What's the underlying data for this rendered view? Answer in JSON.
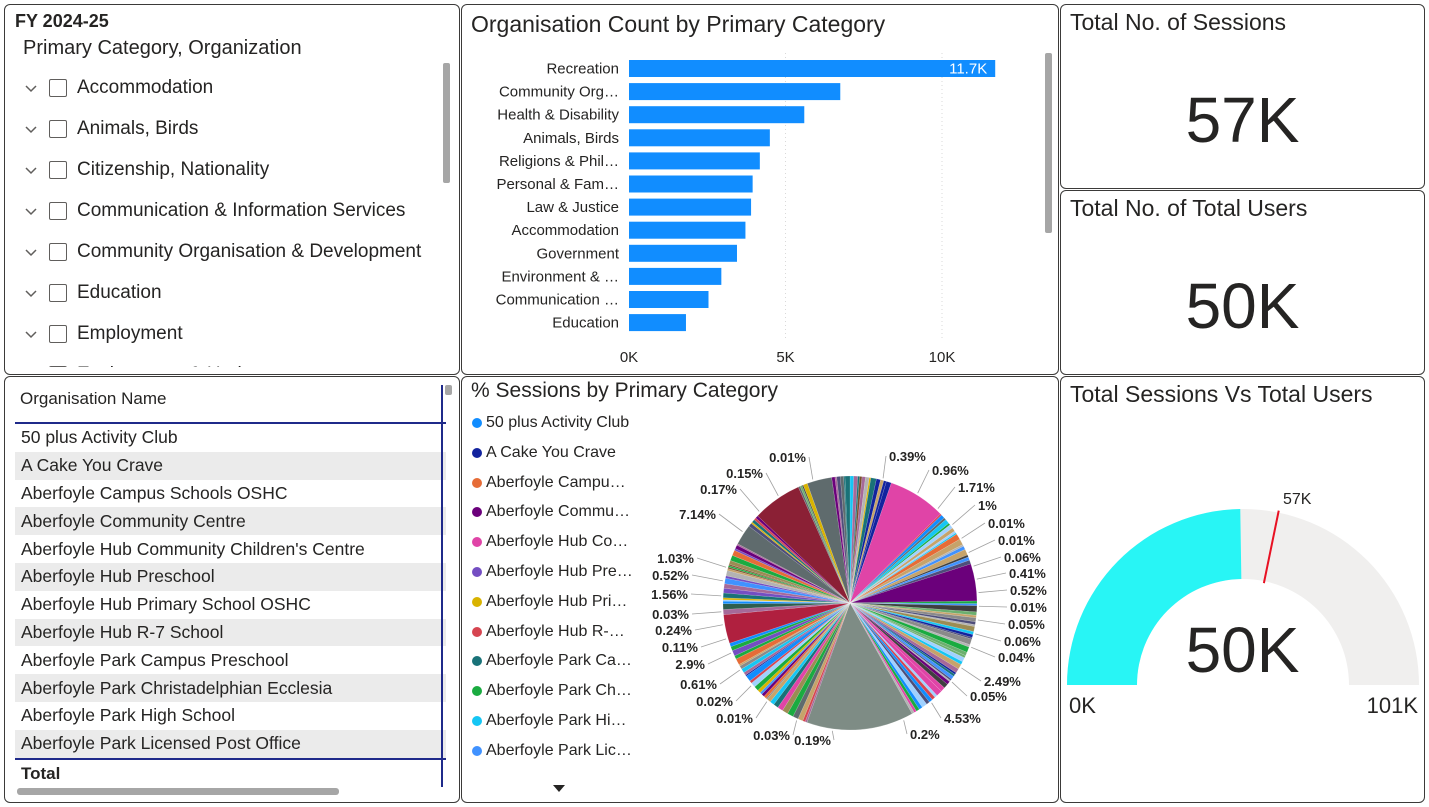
{
  "slicer": {
    "fy": "FY 2024-25",
    "header": "Primary Category, Organization",
    "items": [
      {
        "label": "Accommodation"
      },
      {
        "label": "Animals, Birds"
      },
      {
        "label": "Citizenship, Nationality"
      },
      {
        "label": "Communication & Information Services"
      },
      {
        "label": "Community Organisation & Development"
      },
      {
        "label": "Education"
      },
      {
        "label": "Employment"
      },
      {
        "label": "Environment & Heritage"
      }
    ]
  },
  "bar_chart": {
    "title": "Organisation Count by Primary Category",
    "data_label": "11.7K",
    "ticks": [
      "0K",
      "5K",
      "10K"
    ]
  },
  "chart_data": [
    {
      "type": "bar",
      "orientation": "horizontal",
      "title": "Organisation Count by Primary Category",
      "categories": [
        "Recreation",
        "Community Org…",
        "Health & Disability",
        "Animals, Birds",
        "Religions & Phil…",
        "Personal & Fam…",
        "Law & Justice",
        "Accommodation",
        "Government",
        "Environment & …",
        "Communication …",
        "Education"
      ],
      "values": [
        11700,
        6750,
        5600,
        4500,
        4180,
        3950,
        3900,
        3720,
        3450,
        2950,
        2540,
        1820
      ],
      "xlim": [
        0,
        13000
      ],
      "xticks": [
        "0K",
        "5K",
        "10K"
      ],
      "grid": true,
      "color": "#118DFF"
    },
    {
      "type": "pie",
      "title": "% Sessions by Primary Category",
      "legend": [
        "50 plus Activity Club",
        "A Cake You Crave",
        "Aberfoyle Campu…",
        "Aberfoyle Commu…",
        "Aberfoyle Hub Co…",
        "Aberfoyle Hub Pre…",
        "Aberfoyle Hub Pri…",
        "Aberfoyle Hub R-…",
        "Aberfoyle Park Ca…",
        "Aberfoyle Park Ch…",
        "Aberfoyle Park Hi…",
        "Aberfoyle Park Lic…"
      ],
      "legend_placement": "left",
      "labels": [
        "0.39%",
        "0.96%",
        "1.71%",
        "1%",
        "0.01%",
        "0.01%",
        "0.06%",
        "0.41%",
        "0.52%",
        "0.01%",
        "0.05%",
        "0.06%",
        "0.04%",
        "2.49%",
        "0.05%",
        "4.53%",
        "0.2%",
        "0.19%",
        "0.03%",
        "0.01%",
        "0.02%",
        "0.61%",
        "2.9%",
        "0.11%",
        "0.24%",
        "0.03%",
        "1.56%",
        "0.52%",
        "1.03%",
        "7.14%",
        "0.17%",
        "0.15%",
        "0.01%"
      ]
    },
    {
      "type": "gauge",
      "title": "Total Sessions Vs Total Users",
      "value": 50000,
      "min": 0,
      "max": 101000,
      "target": 57000,
      "value_label": "50K",
      "min_label": "0K",
      "max_label": "101K",
      "target_label": "57K"
    }
  ],
  "kpi": {
    "sessions_title": "Total No. of Sessions",
    "sessions_value": "57K",
    "users_title": "Total No. of Total Users",
    "users_value": "50K"
  },
  "table": {
    "header": "Organisation Name",
    "rows": [
      "50 plus Activity Club",
      "A Cake You Crave",
      "Aberfoyle Campus Schools OSHC",
      "Aberfoyle Community Centre",
      "Aberfoyle Hub Community Children's Centre",
      "Aberfoyle Hub Preschool",
      "Aberfoyle Hub Primary School OSHC",
      "Aberfoyle Hub R-7 School",
      "Aberfoyle Park Campus Preschool",
      "Aberfoyle Park Christadelphian Ecclesia",
      "Aberfoyle Park High School",
      "Aberfoyle Park Licensed Post Office"
    ],
    "total_label": "Total"
  },
  "pie": {
    "title": "% Sessions by Primary Category",
    "legend_colors": [
      "#118DFF",
      "#12239E",
      "#E66C37",
      "#6B007B",
      "#E044A7",
      "#744EC2",
      "#D9B300",
      "#D64550",
      "#197278",
      "#1AAB40",
      "#15C6F4",
      "#4092FF"
    ]
  },
  "gauge": {
    "title": "Total Sessions Vs Total Users",
    "fill_color": "#28F5F5",
    "track_color": "#F0EFEE",
    "target_color": "#E81123"
  }
}
